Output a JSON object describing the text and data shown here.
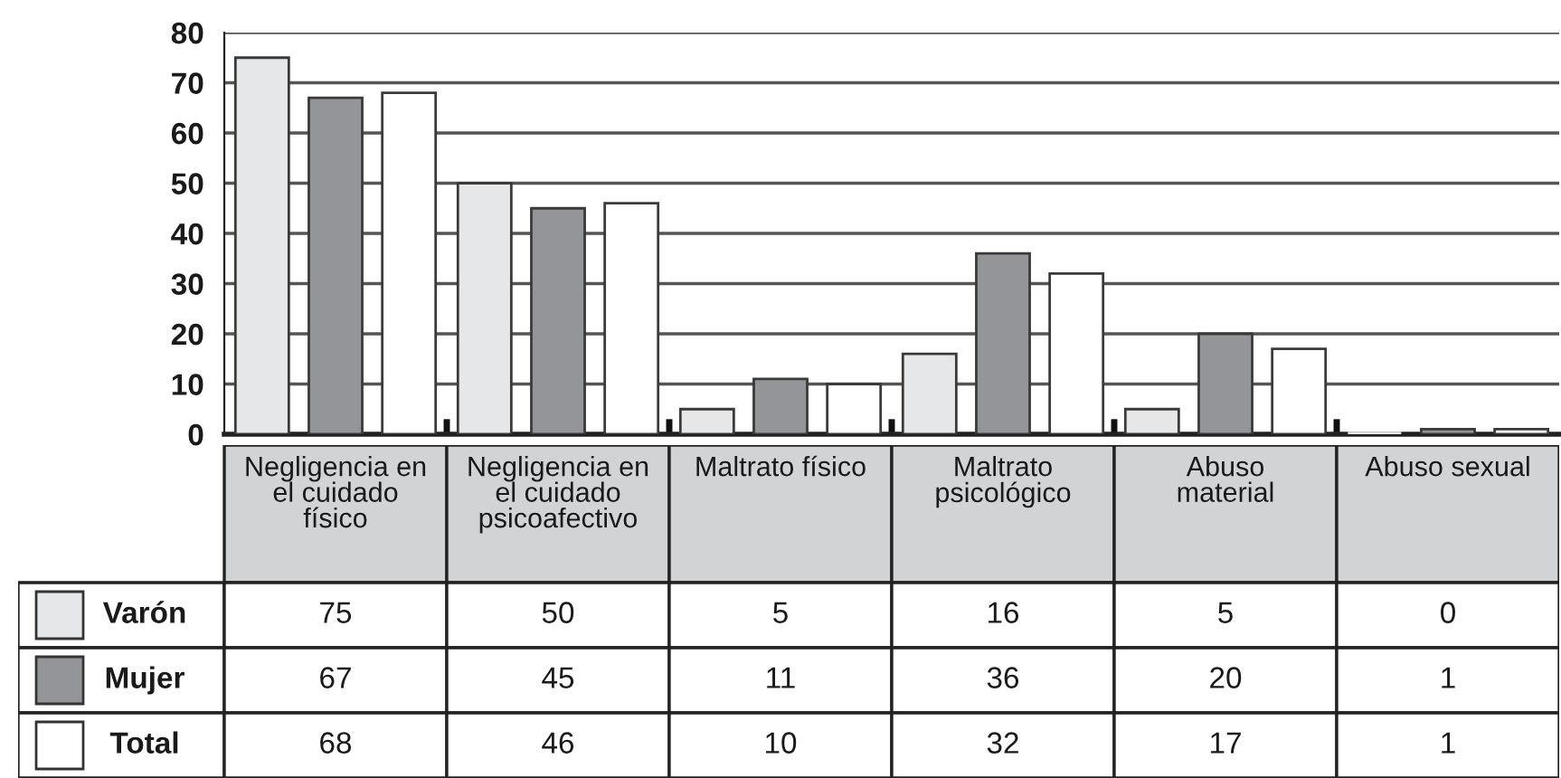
{
  "chart_data": {
    "type": "bar",
    "categories": [
      "Negligencia en\nel cuidado\nfísico",
      "Negligencia en\nel cuidado\npsicoafectivo",
      "Maltrato físico",
      "Maltrato\npsicológico",
      "Abuso\nmaterial",
      "Abuso sexual"
    ],
    "series": [
      {
        "name": "Varón",
        "color": "#e6e7e8",
        "values": [
          75,
          50,
          5,
          16,
          5,
          0
        ]
      },
      {
        "name": "Mujer",
        "color": "#939598",
        "values": [
          67,
          45,
          11,
          36,
          20,
          1
        ]
      },
      {
        "name": "Total",
        "color": "#ffffff",
        "values": [
          68,
          46,
          10,
          32,
          17,
          1
        ]
      }
    ],
    "ylim": [
      0,
      80
    ],
    "yticks": [
      0,
      10,
      20,
      30,
      40,
      50,
      60,
      70,
      80
    ],
    "grid": "y",
    "legend": "bottom left",
    "data_labels": true
  }
}
